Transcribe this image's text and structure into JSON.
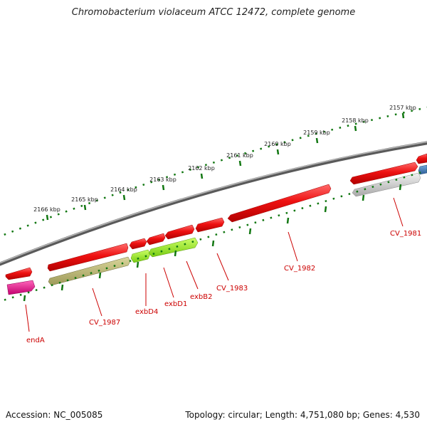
{
  "title": "Chromobacterium violaceum ATCC 12472, complete genome",
  "footer": {
    "accession": "Accession: NC_005085",
    "summary": "Topology: circular; Length: 4,751,080 bp; Genes: 4,530"
  },
  "ruler": {
    "labels": [
      "2157 kbp",
      "2158 kbp",
      "2159 kbp",
      "2160 kbp",
      "2161 kbp",
      "2162 kbp",
      "2163 kbp",
      "2164 kbp",
      "2165 kbp",
      "2166 kbp"
    ]
  },
  "genes": [
    {
      "label": "CV_1981",
      "track": "lower",
      "color": "#bdbdbd"
    },
    {
      "label": "CV_1982",
      "track": "upper",
      "color": "#ee1111"
    },
    {
      "label": "CV_1983",
      "track": "upper",
      "color": "#ee1111"
    },
    {
      "label": "exbB2",
      "track": "lower",
      "color": "#99ee33"
    },
    {
      "label": "exbD1",
      "track": "upper",
      "color": "#ee1111"
    },
    {
      "label": "exbD4",
      "track": "lower",
      "color": "#99ee33"
    },
    {
      "label": "CV_1987",
      "track": "lower",
      "color": "#b5b070"
    },
    {
      "label": "endA",
      "track": "lower",
      "color": "#e8198c"
    }
  ],
  "colors": {
    "cds_forward": "#ee1111",
    "backbone": "#808080",
    "tick": "#117711",
    "label": "#cc0000"
  }
}
